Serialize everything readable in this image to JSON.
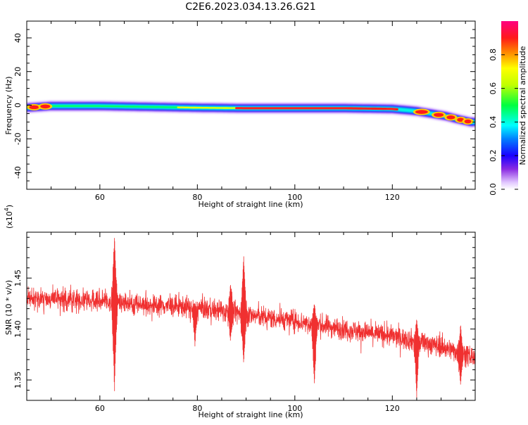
{
  "figure_title": "C2E6.2023.034.13.26.G21",
  "colors": {
    "snr_trace": "#f03030",
    "background": "#ffffff",
    "axes": "#000000"
  },
  "chart_data": [
    {
      "type": "heatmap",
      "title": "",
      "xlabel": "Height of straight line (km)",
      "ylabel": "Frequency (Hz)",
      "xlim": [
        45,
        137
      ],
      "ylim": [
        -50,
        50
      ],
      "x_ticks": [
        60,
        80,
        100,
        120
      ],
      "y_ticks": [
        -40,
        -20,
        0,
        20,
        40
      ],
      "x_tick_labels": [
        "60",
        "80",
        "100",
        "120"
      ],
      "y_tick_labels": [
        "-40",
        "-20",
        "0",
        "20",
        "40"
      ],
      "ridge": {
        "x": [
          45,
          50,
          60,
          70,
          80,
          90,
          100,
          110,
          120,
          125,
          128,
          131,
          133,
          134.5,
          136
        ],
        "y": [
          -1.5,
          -0.5,
          -0.5,
          -1,
          -1.5,
          -1.8,
          -1.8,
          -1.8,
          -2.2,
          -3.5,
          -5,
          -6.5,
          -8,
          -9,
          -10
        ]
      },
      "colorbar": {
        "label": "Normalized spectral amplitude",
        "range": [
          0,
          1
        ],
        "ticks": [
          0,
          0.2,
          0.4,
          0.6,
          0.8
        ],
        "tick_labels": [
          "0.0",
          "0.2",
          "0.4",
          "0.6",
          "0.8"
        ],
        "colormap": "rainbow"
      }
    },
    {
      "type": "line",
      "title": "",
      "xlabel": "Height of straight line (km)",
      "ylabel": "SNR (10 * v/v)",
      "scale_label": "(x10",
      "scale_exponent": "4",
      "scale_close": ")",
      "xlim": [
        45,
        137
      ],
      "ylim": [
        1.33,
        1.495
      ],
      "x_ticks": [
        60,
        80,
        100,
        120
      ],
      "y_ticks": [
        1.35,
        1.4,
        1.45
      ],
      "x_tick_labels": [
        "60",
        "80",
        "100",
        "120"
      ],
      "y_tick_labels": [
        "1.35",
        "1.40",
        "1.45"
      ],
      "trend": {
        "x": [
          45,
          60,
          70,
          80,
          90,
          100,
          110,
          120,
          130,
          137
        ],
        "y": [
          1.43,
          1.428,
          1.424,
          1.421,
          1.414,
          1.408,
          1.4,
          1.393,
          1.383,
          1.372
        ]
      },
      "spikes": [
        {
          "x": 63,
          "y_max": 1.493,
          "y_min": 1.337
        },
        {
          "x": 89.5,
          "y_max": 1.473,
          "y_min": 1.365
        },
        {
          "x": 86.8,
          "y_max": 1.445,
          "y_min": 1.388
        },
        {
          "x": 79.5,
          "y_max": 1.425,
          "y_min": 1.383
        },
        {
          "x": 104,
          "y_max": 1.425,
          "y_min": 1.345
        },
        {
          "x": 125,
          "y_max": 1.41,
          "y_min": 1.332
        },
        {
          "x": 134,
          "y_max": 1.405,
          "y_min": 1.345
        }
      ],
      "noise_amplitude": 0.0075
    }
  ]
}
